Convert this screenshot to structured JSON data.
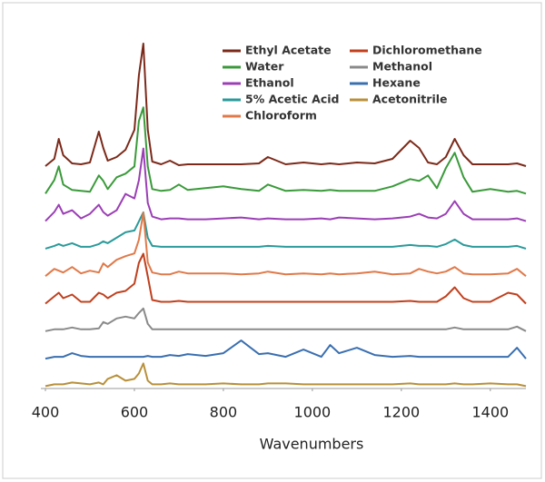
{
  "chart_data": {
    "type": "line",
    "xlabel": "Wavenumbers",
    "x": [
      400,
      420,
      430,
      440,
      460,
      480,
      500,
      520,
      530,
      540,
      560,
      580,
      600,
      610,
      620,
      630,
      640,
      660,
      680,
      700,
      720,
      760,
      800,
      840,
      880,
      900,
      940,
      980,
      1020,
      1040,
      1060,
      1100,
      1140,
      1180,
      1220,
      1240,
      1260,
      1280,
      1300,
      1320,
      1340,
      1360,
      1400,
      1440,
      1460,
      1480
    ],
    "xlim": [
      400,
      1480
    ],
    "xticks": [
      400,
      600,
      800,
      1000,
      1200,
      1400
    ],
    "series": [
      {
        "name": "Ethyl Acetate",
        "color": "#7b2a1a",
        "values": [
          0,
          8,
          30,
          12,
          3,
          2,
          4,
          38,
          20,
          6,
          10,
          18,
          40,
          100,
          135,
          40,
          5,
          2,
          6,
          1,
          2,
          2,
          2,
          2,
          3,
          10,
          2,
          4,
          2,
          3,
          2,
          4,
          3,
          8,
          28,
          20,
          4,
          2,
          10,
          30,
          12,
          2,
          2,
          2,
          3,
          0
        ]
      },
      {
        "name": "Water",
        "color": "#3a9a3a",
        "values": [
          0,
          15,
          30,
          10,
          4,
          3,
          2,
          20,
          14,
          5,
          18,
          22,
          30,
          80,
          95,
          30,
          5,
          3,
          4,
          10,
          4,
          6,
          8,
          5,
          3,
          10,
          3,
          4,
          3,
          4,
          3,
          3,
          3,
          8,
          16,
          14,
          20,
          6,
          28,
          45,
          18,
          2,
          5,
          2,
          3,
          0
        ]
      },
      {
        "name": "Ethanol",
        "color": "#9b3fb5",
        "values": [
          0,
          10,
          18,
          8,
          12,
          3,
          8,
          18,
          10,
          6,
          12,
          30,
          25,
          45,
          80,
          20,
          5,
          2,
          3,
          3,
          2,
          2,
          3,
          4,
          2,
          3,
          2,
          2,
          3,
          2,
          4,
          3,
          2,
          3,
          5,
          8,
          4,
          3,
          8,
          22,
          8,
          2,
          2,
          2,
          3,
          0
        ]
      },
      {
        "name": "5% Acetic Acid",
        "color": "#2a9a9a",
        "values": [
          0,
          3,
          5,
          3,
          6,
          2,
          2,
          5,
          8,
          6,
          12,
          18,
          20,
          30,
          40,
          12,
          3,
          2,
          2,
          2,
          2,
          2,
          2,
          2,
          2,
          3,
          2,
          2,
          2,
          2,
          2,
          2,
          2,
          2,
          4,
          3,
          3,
          2,
          5,
          10,
          4,
          2,
          2,
          2,
          3,
          0
        ]
      },
      {
        "name": "Chloroform",
        "color": "#e07a4a",
        "values": [
          0,
          8,
          6,
          4,
          10,
          3,
          6,
          4,
          14,
          10,
          18,
          22,
          25,
          40,
          70,
          15,
          4,
          2,
          2,
          5,
          3,
          3,
          3,
          2,
          3,
          5,
          2,
          3,
          2,
          3,
          2,
          3,
          5,
          2,
          3,
          8,
          5,
          3,
          5,
          10,
          3,
          2,
          2,
          3,
          8,
          0
        ]
      },
      {
        "name": "Dichloromethane",
        "color": "#c0401e",
        "values": [
          0,
          8,
          12,
          6,
          10,
          2,
          2,
          12,
          10,
          6,
          12,
          14,
          22,
          45,
          55,
          30,
          4,
          2,
          2,
          3,
          2,
          2,
          2,
          2,
          2,
          2,
          2,
          2,
          2,
          2,
          2,
          2,
          2,
          2,
          3,
          2,
          2,
          2,
          8,
          18,
          6,
          2,
          2,
          12,
          10,
          0
        ]
      },
      {
        "name": "Methanol",
        "color": "#8a8a8a",
        "values": [
          0,
          2,
          2,
          2,
          4,
          2,
          2,
          3,
          10,
          8,
          14,
          16,
          14,
          20,
          25,
          8,
          2,
          2,
          2,
          2,
          2,
          2,
          2,
          2,
          2,
          2,
          2,
          2,
          2,
          2,
          2,
          2,
          2,
          2,
          2,
          2,
          2,
          2,
          2,
          4,
          2,
          2,
          2,
          2,
          5,
          0
        ]
      },
      {
        "name": "Hexane",
        "color": "#3a6fb0",
        "values": [
          0,
          2,
          2,
          2,
          6,
          3,
          2,
          2,
          2,
          2,
          2,
          2,
          2,
          2,
          2,
          3,
          2,
          2,
          4,
          3,
          5,
          3,
          6,
          20,
          5,
          6,
          2,
          10,
          2,
          15,
          6,
          12,
          4,
          2,
          3,
          2,
          2,
          2,
          2,
          2,
          2,
          2,
          2,
          2,
          12,
          0
        ]
      },
      {
        "name": "Acetonitrile",
        "color": "#b8903a",
        "values": [
          0,
          2,
          2,
          2,
          4,
          3,
          2,
          4,
          2,
          8,
          12,
          6,
          8,
          14,
          25,
          6,
          2,
          2,
          3,
          2,
          2,
          2,
          3,
          2,
          2,
          3,
          3,
          2,
          2,
          2,
          2,
          2,
          2,
          2,
          3,
          2,
          2,
          2,
          2,
          3,
          2,
          2,
          3,
          2,
          2,
          0
        ]
      }
    ]
  }
}
